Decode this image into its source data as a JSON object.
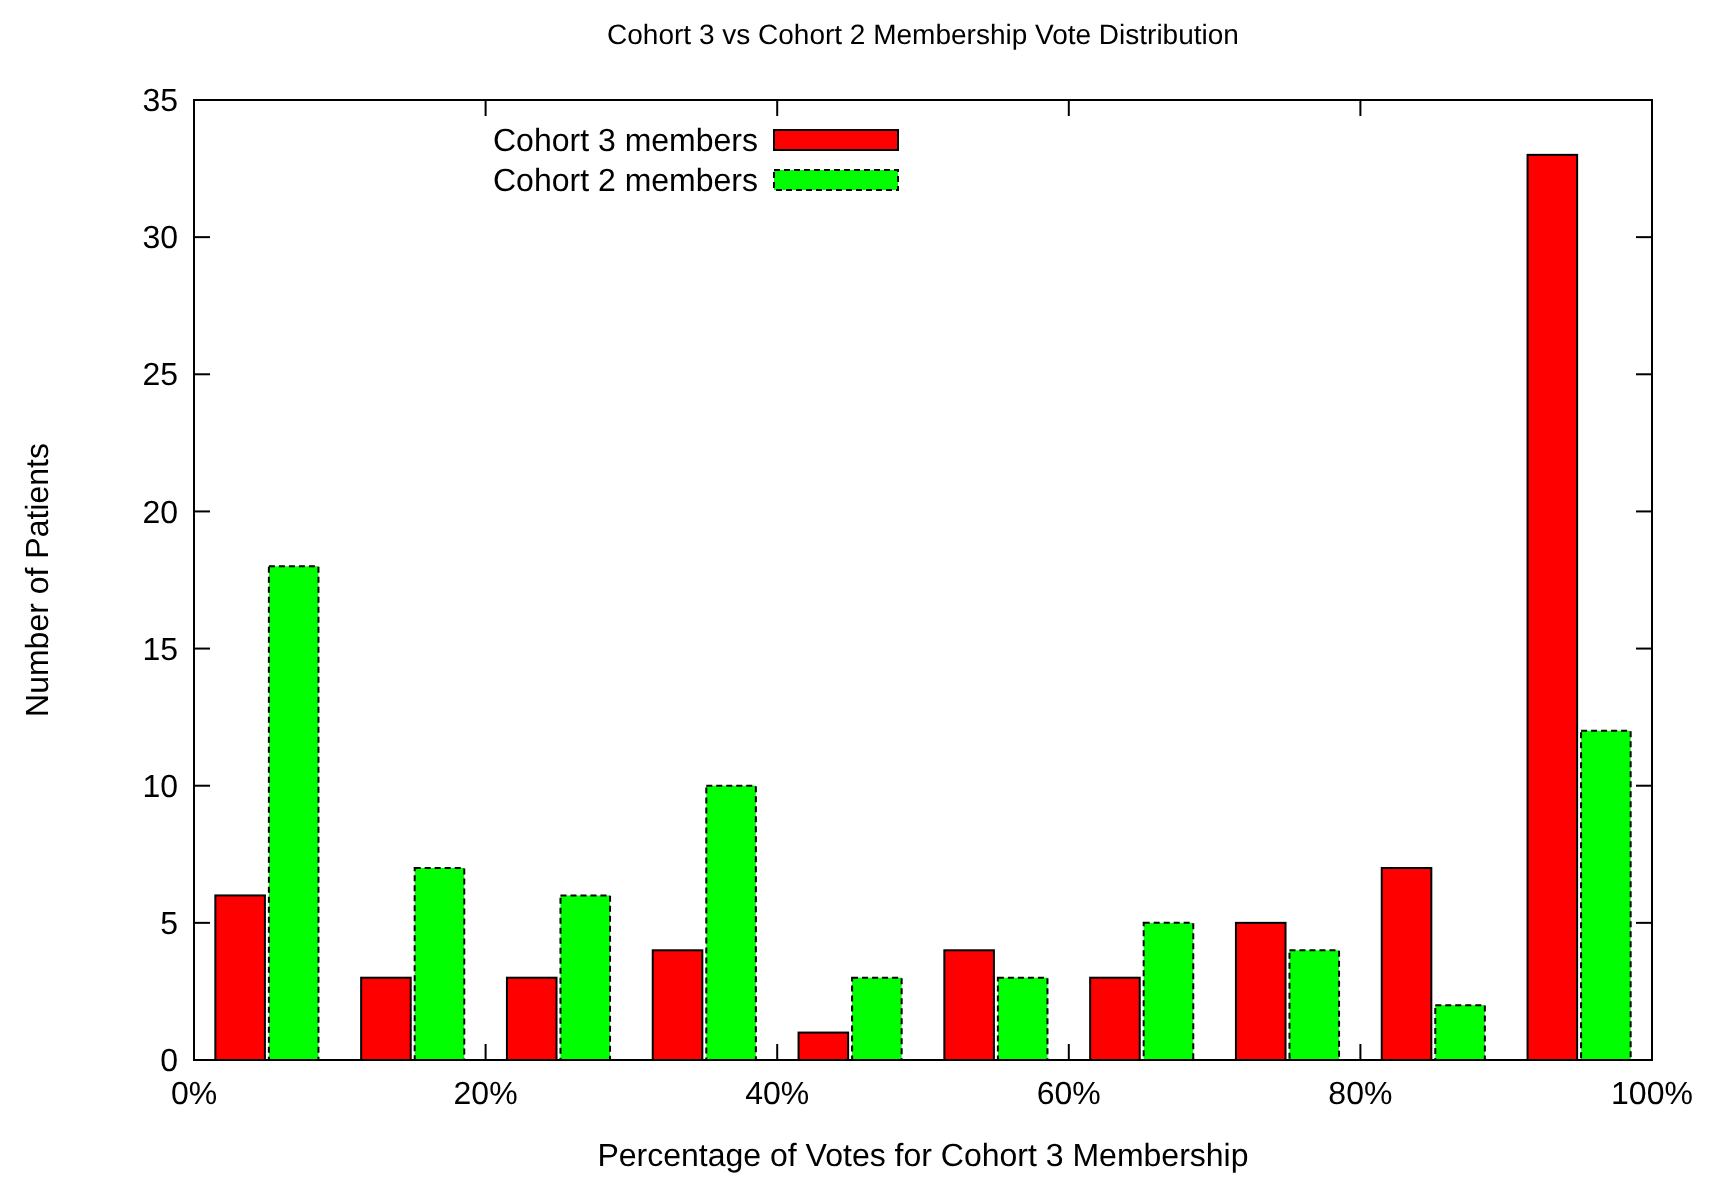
{
  "chart_data": {
    "type": "bar",
    "title": "Cohort 3 vs Cohort 2 Membership Vote Distribution",
    "xlabel": "Percentage of Votes for Cohort 3 Membership",
    "ylabel": "Number of Patients",
    "x": [
      5,
      15,
      25,
      35,
      45,
      55,
      65,
      75,
      85,
      95
    ],
    "xlim": [
      0,
      100
    ],
    "xticks": [
      {
        "value": 0,
        "label": "0%"
      },
      {
        "value": 20,
        "label": "20%"
      },
      {
        "value": 40,
        "label": "40%"
      },
      {
        "value": 60,
        "label": "60%"
      },
      {
        "value": 80,
        "label": "80%"
      },
      {
        "value": 100,
        "label": "100%"
      }
    ],
    "ylim": [
      0,
      35
    ],
    "yticks": [
      0,
      5,
      10,
      15,
      20,
      25,
      30,
      35
    ],
    "series": [
      {
        "name": "Cohort 3 members",
        "color": "#ff0000",
        "values": [
          6,
          3,
          3,
          4,
          1,
          4,
          3,
          5,
          7,
          33
        ]
      },
      {
        "name": "Cohort 2 members",
        "color": "#00ff00",
        "values": [
          18,
          7,
          6,
          10,
          3,
          3,
          5,
          4,
          2,
          12
        ]
      }
    ],
    "legend": "top left",
    "grid": false
  }
}
